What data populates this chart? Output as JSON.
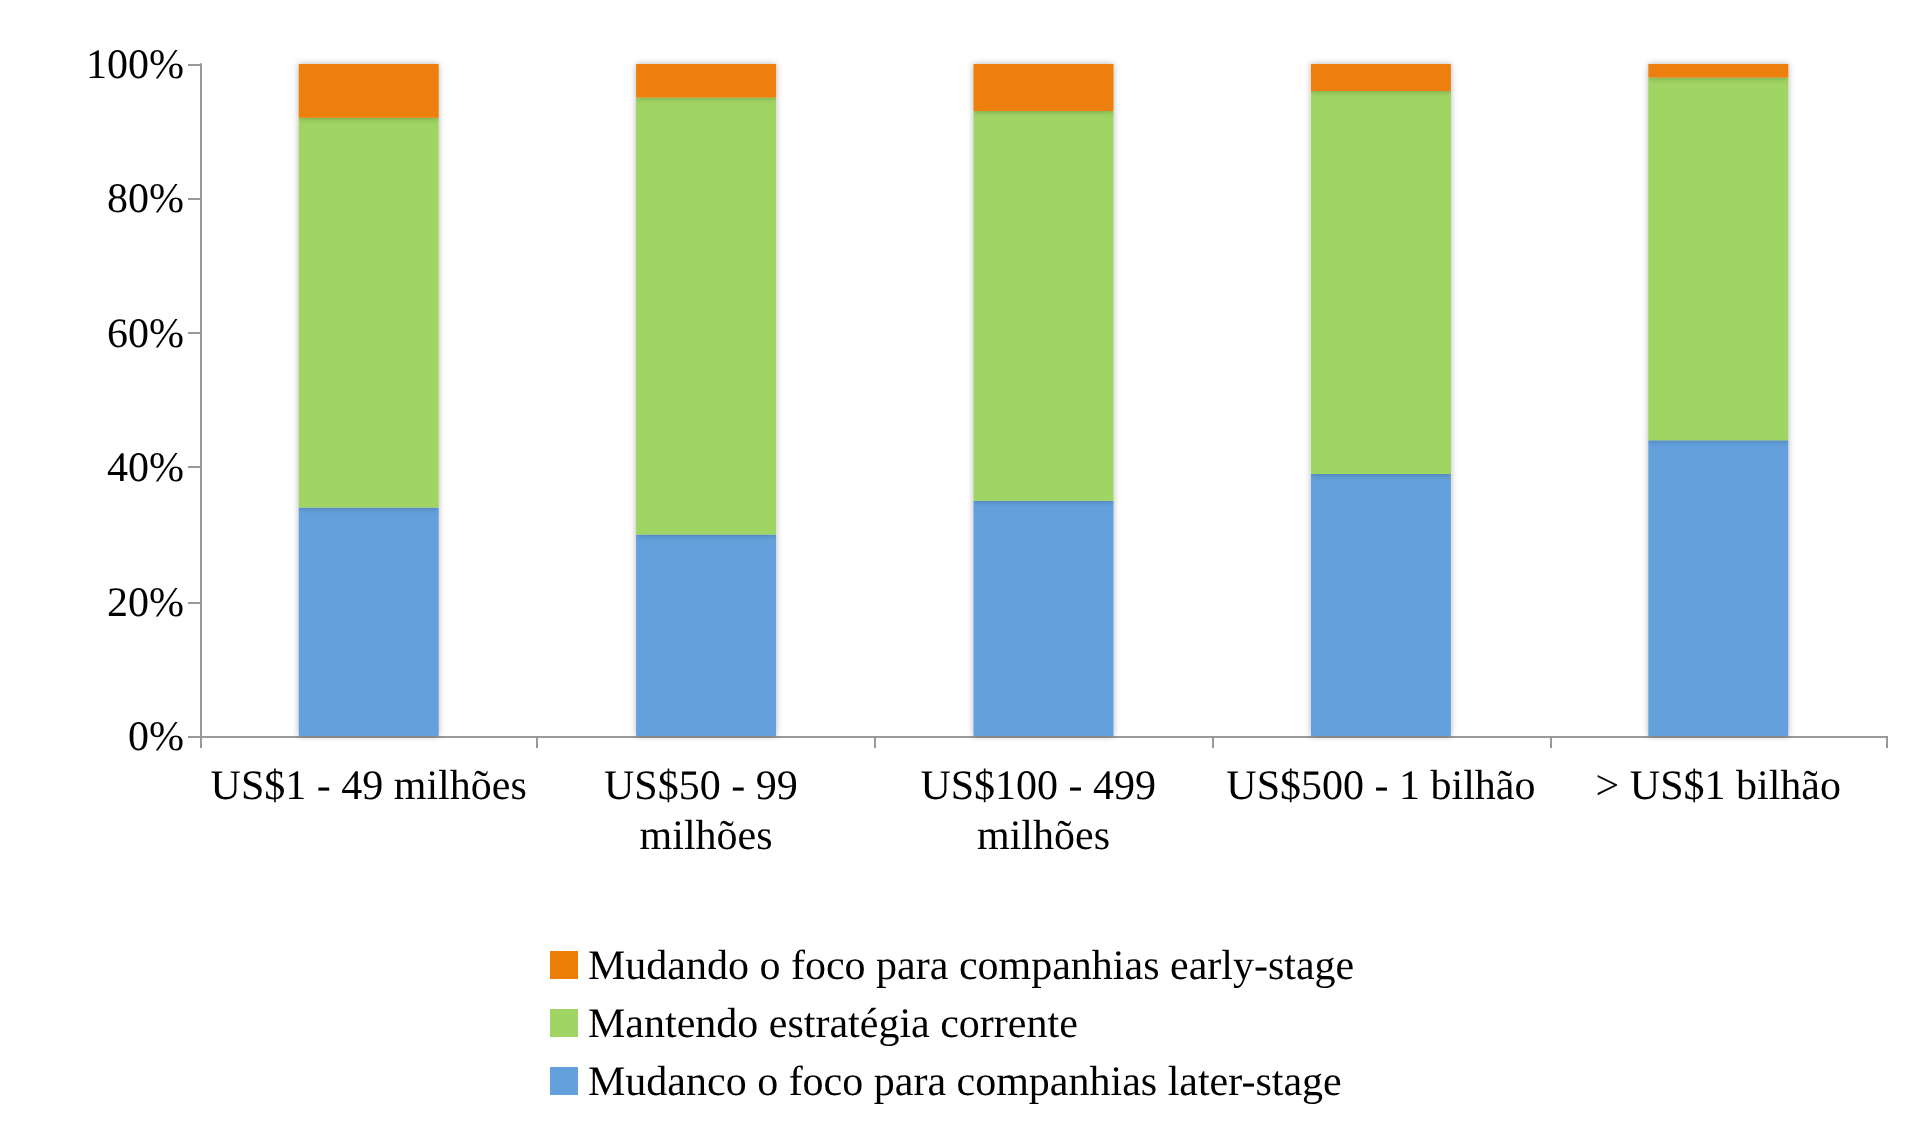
{
  "chart_data": {
    "type": "bar",
    "stacked": true,
    "categories": [
      "US$1 - 49 milhões",
      "US$50 - 99 milhões",
      "US$100 - 499 milhões",
      "US$500 - 1 bilhão",
      "> US$1 bilhão"
    ],
    "series": [
      {
        "name": "Mudanco o foco para companhias later-stage",
        "color": "#64a0dc",
        "values": [
          34,
          30,
          35,
          39,
          44
        ]
      },
      {
        "name": "Mantendo estratégia corrente",
        "color": "#a0d464",
        "values": [
          58,
          65,
          58,
          57,
          54
        ]
      },
      {
        "name": "Mudando o foco para companhias early-stage",
        "color": "#ec7f08",
        "values": [
          8,
          5,
          7,
          4,
          2
        ]
      }
    ],
    "ylim": [
      0,
      100
    ],
    "yticks": [
      {
        "value": 0,
        "label": "0%"
      },
      {
        "value": 20,
        "label": "20%"
      },
      {
        "value": 40,
        "label": "40%"
      },
      {
        "value": 60,
        "label": "60%"
      },
      {
        "value": 80,
        "label": "80%"
      },
      {
        "value": 100,
        "label": "100%"
      }
    ],
    "grid": false,
    "legend": "bottom"
  }
}
